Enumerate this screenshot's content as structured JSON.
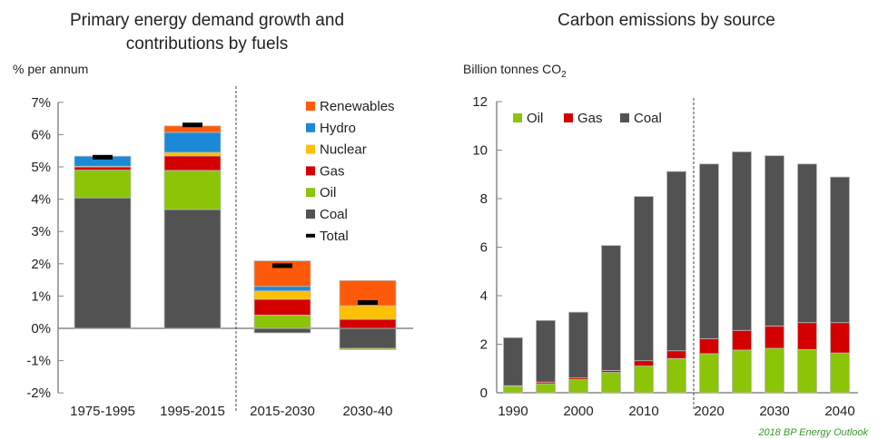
{
  "colors": {
    "Renewables": "#ff5a0a",
    "Hydro": "#1a8ad8",
    "Nuclear": "#ffc000",
    "Gas": "#d40000",
    "Oil": "#8cc408",
    "Coal": "#525252",
    "Total": "#000000"
  },
  "footer": "2018 BP Energy Outlook",
  "chart_data": [
    {
      "type": "bar",
      "stacked": true,
      "title": "Primary energy demand growth and contributions by fuels",
      "title_lines": [
        "Primary energy demand growth and",
        "contributions by fuels"
      ],
      "ylabel": "% per annum",
      "ylim": [
        -2,
        7
      ],
      "yticks": [
        "-2%",
        "-1%",
        "0%",
        "1%",
        "2%",
        "3%",
        "4%",
        "5%",
        "6%",
        "7%"
      ],
      "legend": [
        "Renewables",
        "Hydro",
        "Nuclear",
        "Gas",
        "Oil",
        "Coal",
        "Total"
      ],
      "legend_position": "top-right",
      "categories": [
        "1975-1995",
        "1995-2015",
        "2015-2030",
        "2030-40"
      ],
      "series": [
        {
          "name": "Coal",
          "values": [
            4.04,
            3.68,
            -0.14,
            -0.62
          ]
        },
        {
          "name": "Oil",
          "values": [
            0.86,
            1.21,
            0.41,
            -0.04
          ]
        },
        {
          "name": "Gas",
          "values": [
            0.1,
            0.45,
            0.49,
            0.28
          ]
        },
        {
          "name": "Nuclear",
          "values": [
            0.02,
            0.11,
            0.26,
            0.42
          ]
        },
        {
          "name": "Hydro",
          "values": [
            0.31,
            0.62,
            0.14,
            0
          ]
        },
        {
          "name": "Renewables",
          "values": [
            0,
            0.2,
            0.79,
            0.78
          ]
        }
      ],
      "total": [
        5.3,
        6.3,
        1.94,
        0.8
      ]
    },
    {
      "type": "bar",
      "stacked": true,
      "title": "Carbon emissions by source",
      "ylabel": "Billion tonnes CO2",
      "ylim": [
        0,
        12
      ],
      "yticks": [
        "0",
        "2",
        "4",
        "6",
        "8",
        "10",
        "12"
      ],
      "xticks": [
        "1990",
        "2000",
        "2010",
        "2020",
        "2030",
        "2040"
      ],
      "legend": [
        "Oil",
        "Gas",
        "Coal"
      ],
      "legend_position": "top-left",
      "categories": [
        "1990",
        "1995",
        "2000",
        "2005",
        "2010",
        "2015",
        "2020",
        "2025",
        "2030",
        "2035",
        "2040"
      ],
      "series": [
        {
          "name": "Oil",
          "values": [
            0.27,
            0.37,
            0.54,
            0.84,
            1.1,
            1.41,
            1.61,
            1.76,
            1.83,
            1.78,
            1.64
          ]
        },
        {
          "name": "Gas",
          "values": [
            0.02,
            0.07,
            0.07,
            0.08,
            0.22,
            0.32,
            0.62,
            0.81,
            0.92,
            1.11,
            1.25
          ]
        },
        {
          "name": "Coal",
          "values": [
            1.98,
            2.54,
            2.71,
            5.15,
            6.77,
            7.39,
            7.2,
            7.36,
            7.02,
            6.54,
            6.0
          ]
        }
      ]
    }
  ]
}
